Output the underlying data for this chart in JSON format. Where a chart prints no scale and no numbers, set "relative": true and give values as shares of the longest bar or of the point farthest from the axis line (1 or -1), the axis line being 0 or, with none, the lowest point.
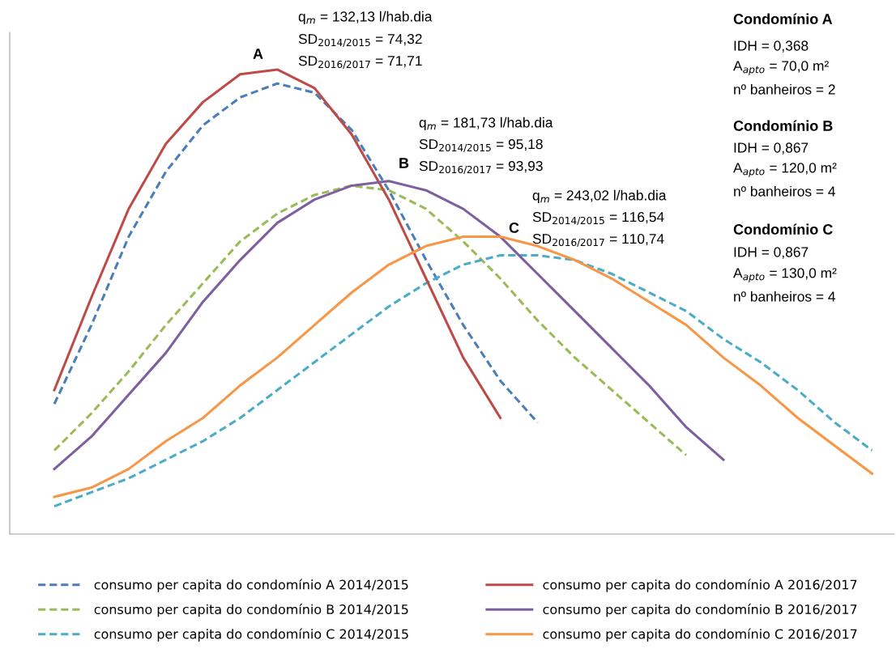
{
  "chart_data": {
    "type": "line",
    "relative": true,
    "categories": [
      null,
      null,
      null,
      null,
      null,
      null,
      null,
      null,
      null,
      null,
      null,
      null,
      null,
      null,
      null,
      null,
      null,
      null,
      null,
      null,
      null,
      null,
      null
    ],
    "legend": "bottom",
    "grid": false,
    "marker": "none",
    "series": [
      {
        "name": "consumo per capita do condomínio A 2014/2015",
        "color": "#4a7ebb",
        "line_style": "dashed",
        "values": [
          0.28,
          0.45,
          0.64,
          0.78,
          0.88,
          0.94,
          0.97,
          0.95,
          0.87,
          0.74,
          0.59,
          0.45,
          0.33,
          0.24,
          null,
          null,
          null,
          null,
          null,
          null,
          null,
          null,
          null
        ]
      },
      {
        "name": "consumo per capita do condomínio B 2014/2015",
        "color": "#9bbb59",
        "line_style": "dashed",
        "values": [
          0.18,
          0.26,
          0.35,
          0.45,
          0.54,
          0.63,
          0.69,
          0.73,
          0.75,
          0.74,
          0.7,
          0.63,
          0.55,
          0.46,
          0.38,
          0.31,
          0.24,
          0.17,
          null,
          null,
          null,
          null,
          null
        ]
      },
      {
        "name": "consumo per capita do condomínio C 2014/2015",
        "color": "#4bacc6",
        "line_style": "dashed",
        "values": [
          0.06,
          0.09,
          0.12,
          0.16,
          0.2,
          0.25,
          0.31,
          0.37,
          0.43,
          0.49,
          0.54,
          0.58,
          0.6,
          0.6,
          0.59,
          0.56,
          0.52,
          0.48,
          0.42,
          0.37,
          0.31,
          0.24,
          0.18
        ]
      },
      {
        "name": "consumo per capita do condomínio A 2016/2017",
        "color": "#be4b48",
        "line_style": "solid",
        "values": [
          0.31,
          0.51,
          0.7,
          0.84,
          0.93,
          0.99,
          1.0,
          0.96,
          0.86,
          0.72,
          0.55,
          0.38,
          0.25,
          null,
          null,
          null,
          null,
          null,
          null,
          null,
          null,
          null,
          null
        ]
      },
      {
        "name": "consumo per capita do condomínio B 2016/2017",
        "color": "#7d5fa0",
        "line_style": "solid",
        "values": [
          0.14,
          0.21,
          0.3,
          0.39,
          0.5,
          0.59,
          0.67,
          0.72,
          0.75,
          0.76,
          0.74,
          0.7,
          0.64,
          0.56,
          0.48,
          0.4,
          0.32,
          0.23,
          0.16,
          null,
          null,
          null,
          null
        ]
      },
      {
        "name": "consumo per capita do condomínio C 2016/2017",
        "color": "#f79646",
        "line_style": "solid",
        "values": [
          0.08,
          0.1,
          0.14,
          0.2,
          0.25,
          0.32,
          0.38,
          0.45,
          0.52,
          0.58,
          0.62,
          0.64,
          0.64,
          0.62,
          0.59,
          0.55,
          0.5,
          0.45,
          0.38,
          0.32,
          0.25,
          0.19,
          0.13
        ]
      }
    ],
    "annotations": [
      "A",
      "q$_{m}$ = 132,13 l/hab.dia",
      "SD$_{2014/2015}$ = 74,32",
      "SD$_{2016/2017}$ = 71,71",
      "B",
      "q$_{m}$ = 181,73 l/hab.dia",
      "SD$_{2014/2015}$ = 95,18",
      "SD$_{2016/2017}$ = 93,93",
      "C",
      "q$_{m}$ = 243,02 l/hab.dia",
      "SD$_{2014/2015}$ = 116,54",
      "SD$_{2016/2017}$ = 110,74",
      "Condomínio A",
      "IDH = 0,368",
      "A$_{apto}$ = 70,0 m²",
      "nº banheiros = 2",
      "Condomínio B",
      "IDH = 0,867",
      "A$_{apto}$ = 120,0 m²",
      "nº banheiros = 4",
      "Condomínio C",
      "IDH = 0,867",
      "A$_{apto}$ = 130,0 m²",
      "nº banheiros = 4"
    ]
  }
}
